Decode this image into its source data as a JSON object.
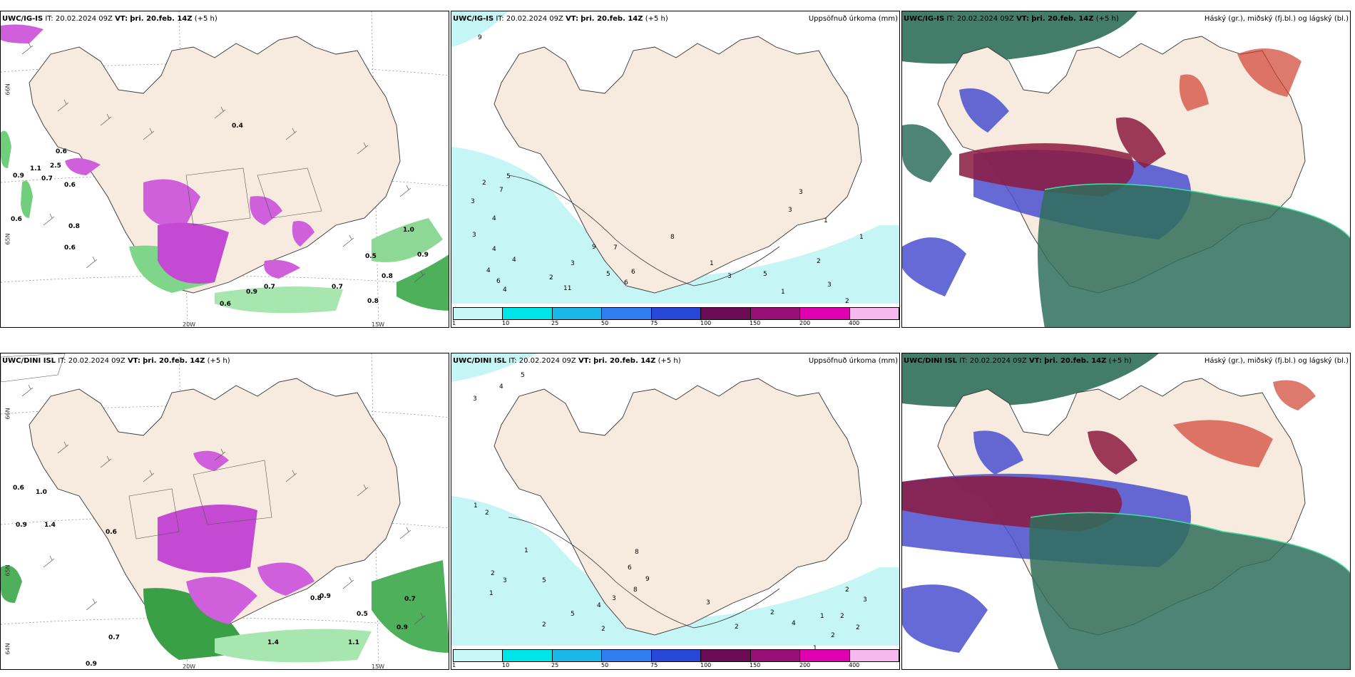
{
  "rows": [
    {
      "model": "UWC/IG-IS",
      "it_label": "IT:",
      "it": "20.02.2024 09Z",
      "vt_label": "VT:",
      "vt": "þri. 20.feb. 14Z",
      "lead": "(+5 h)"
    },
    {
      "model": "UWC/DINI ISL",
      "it_label": "IT:",
      "it": "20.02.2024 09Z",
      "vt_label": "VT:",
      "vt": "þri. 20.feb. 14Z",
      "lead": "(+5 h)"
    }
  ],
  "precip_title": "Uppsöfnuð úrkoma (mm)",
  "cloud_title": "Háský (gr.), miðský (fj.bl.) og lágský (bl.)",
  "colorbar": {
    "ticks": [
      "1",
      "10",
      "25",
      "50",
      "75",
      "100",
      "150",
      "200",
      "400"
    ],
    "colors": [
      "#c7f7f7",
      "#00e5e8",
      "#19b8e8",
      "#2f7ff0",
      "#2747d8",
      "#6b0a55",
      "#980f75",
      "#e000b0",
      "#f7b8f0"
    ]
  },
  "axes": {
    "lon_20w": "20W",
    "lon_15w": "15W",
    "lat_66n": "66N",
    "lat_65n": "65N",
    "lat_64n": "64N"
  },
  "colors": {
    "land": "#f7ebdf",
    "precip_light": "#c5f5f5",
    "wet_green": "#6fcf7a",
    "wet_purple": "#cf5fdb",
    "cloud_high": "#2f6f5a",
    "cloud_mid": "#8b1a40",
    "cloud_low": "#4a50d0"
  },
  "wind_panel_labels": {
    "top": [
      "2.5",
      "0.6",
      "0.9",
      "1.1",
      "0.7",
      "0.6",
      "0.6",
      "0.8",
      "0.6",
      "0.4",
      "1.0",
      "0.9",
      "0.5",
      "0.8",
      "0.7",
      "0.8",
      "0.9",
      "0.7",
      "0.6"
    ],
    "bottom": [
      "0.6",
      "1.0",
      "0.9",
      "1.4",
      "0.7",
      "0.9",
      "0.6",
      "0.8",
      "0.5",
      "1.1",
      "0.9",
      "0.7",
      "1.4",
      "0.9"
    ]
  },
  "precip_panel_labels": {
    "top": [
      "9",
      "5",
      "7",
      "2",
      "3",
      "3",
      "4",
      "4",
      "4",
      "6",
      "4",
      "4",
      "2",
      "11",
      "3",
      "9",
      "5",
      "7",
      "6",
      "6",
      "8",
      "1",
      "3",
      "5",
      "1",
      "2",
      "3",
      "2",
      "1",
      "3",
      "3",
      "1"
    ],
    "bottom": [
      "5",
      "4",
      "3",
      "1",
      "2",
      "2",
      "1",
      "3",
      "1",
      "2",
      "5",
      "4",
      "3",
      "2",
      "5",
      "6",
      "8",
      "9",
      "8",
      "3",
      "2",
      "2",
      "4",
      "1",
      "2",
      "3",
      "2",
      "2",
      "2",
      "1"
    ]
  }
}
